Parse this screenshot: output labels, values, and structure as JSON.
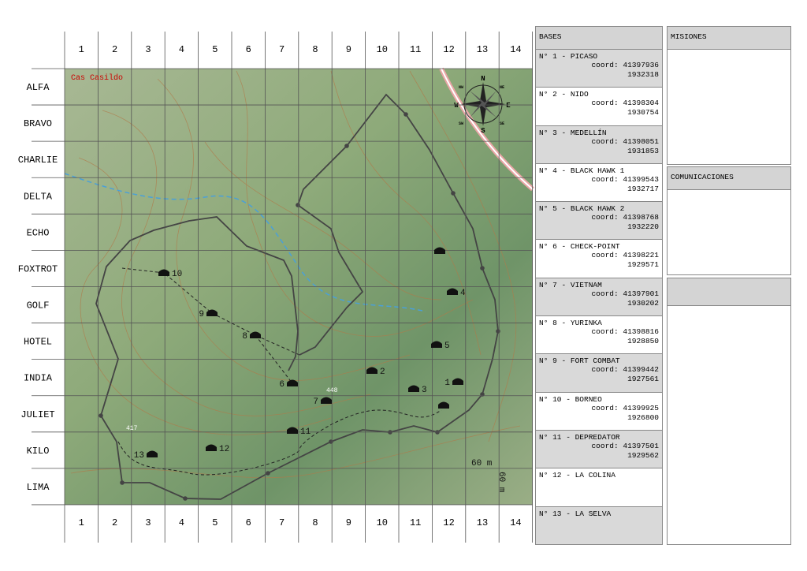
{
  "grid": {
    "columns": [
      "1",
      "2",
      "3",
      "4",
      "5",
      "6",
      "7",
      "8",
      "9",
      "10",
      "11",
      "12",
      "13",
      "14"
    ],
    "rows": [
      "ALFA",
      "BRAVO",
      "CHARLIE",
      "DELTA",
      "ECHO",
      "FOXTROT",
      "GOLF",
      "HOTEL",
      "INDIA",
      "JULIET",
      "KILO",
      "LIMA"
    ]
  },
  "map": {
    "labels": {
      "place": "Cas Casildo",
      "height_1": "417",
      "height_2": "448",
      "scale_h": "60 m",
      "scale_v": "60 m"
    },
    "compass": {
      "n": "N",
      "s": "S",
      "e": "E",
      "w": "W",
      "ne": "NE",
      "nw": "NW",
      "se": "SE",
      "sw": "SW"
    },
    "markers": [
      "1",
      "2",
      "3",
      "4",
      "5",
      "6",
      "7",
      "8",
      "9",
      "10",
      "11",
      "12",
      "13"
    ]
  },
  "bases": {
    "title": "BASES",
    "items": [
      {
        "name": "N° 1 - PICASO",
        "coord": "coord: 41397936",
        "coord2": "1932318"
      },
      {
        "name": "N° 2 - NIDO",
        "coord": "coord: 41398304",
        "coord2": "1930754"
      },
      {
        "name": "N° 3 - MEDELLÍN",
        "coord": "coord: 41398051",
        "coord2": "1931853"
      },
      {
        "name": "N° 4 - BLACK HAWK 1",
        "coord": "coord: 41399543",
        "coord2": "1932717"
      },
      {
        "name": "N° 5 - BLACK HAWK 2",
        "coord": "coord: 41398768",
        "coord2": "1932220"
      },
      {
        "name": "N° 6 - CHECK-POINT",
        "coord": "coord: 41398221",
        "coord2": "1929571"
      },
      {
        "name": "N° 7 - VIETNAM",
        "coord": "coord: 41397901",
        "coord2": "1930202"
      },
      {
        "name": "N° 8 - YURINKA",
        "coord": "coord: 41398816",
        "coord2": "1928850"
      },
      {
        "name": "N° 9 - FORT COMBAT",
        "coord": "coord: 41399442",
        "coord2": "1927561"
      },
      {
        "name": "N° 10 - BORNEO",
        "coord": "coord: 41399925",
        "coord2": "1926800"
      },
      {
        "name": "N° 11 - DEPREDATOR",
        "coord": "coord: 41397501",
        "coord2": "1929562"
      },
      {
        "name": "N° 12 - LA COLINA"
      },
      {
        "name": "N° 13 - LA SELVA"
      }
    ]
  },
  "misiones": {
    "title": "MISIONES"
  },
  "comunicaciones": {
    "title": "COMUNICACIONES"
  }
}
